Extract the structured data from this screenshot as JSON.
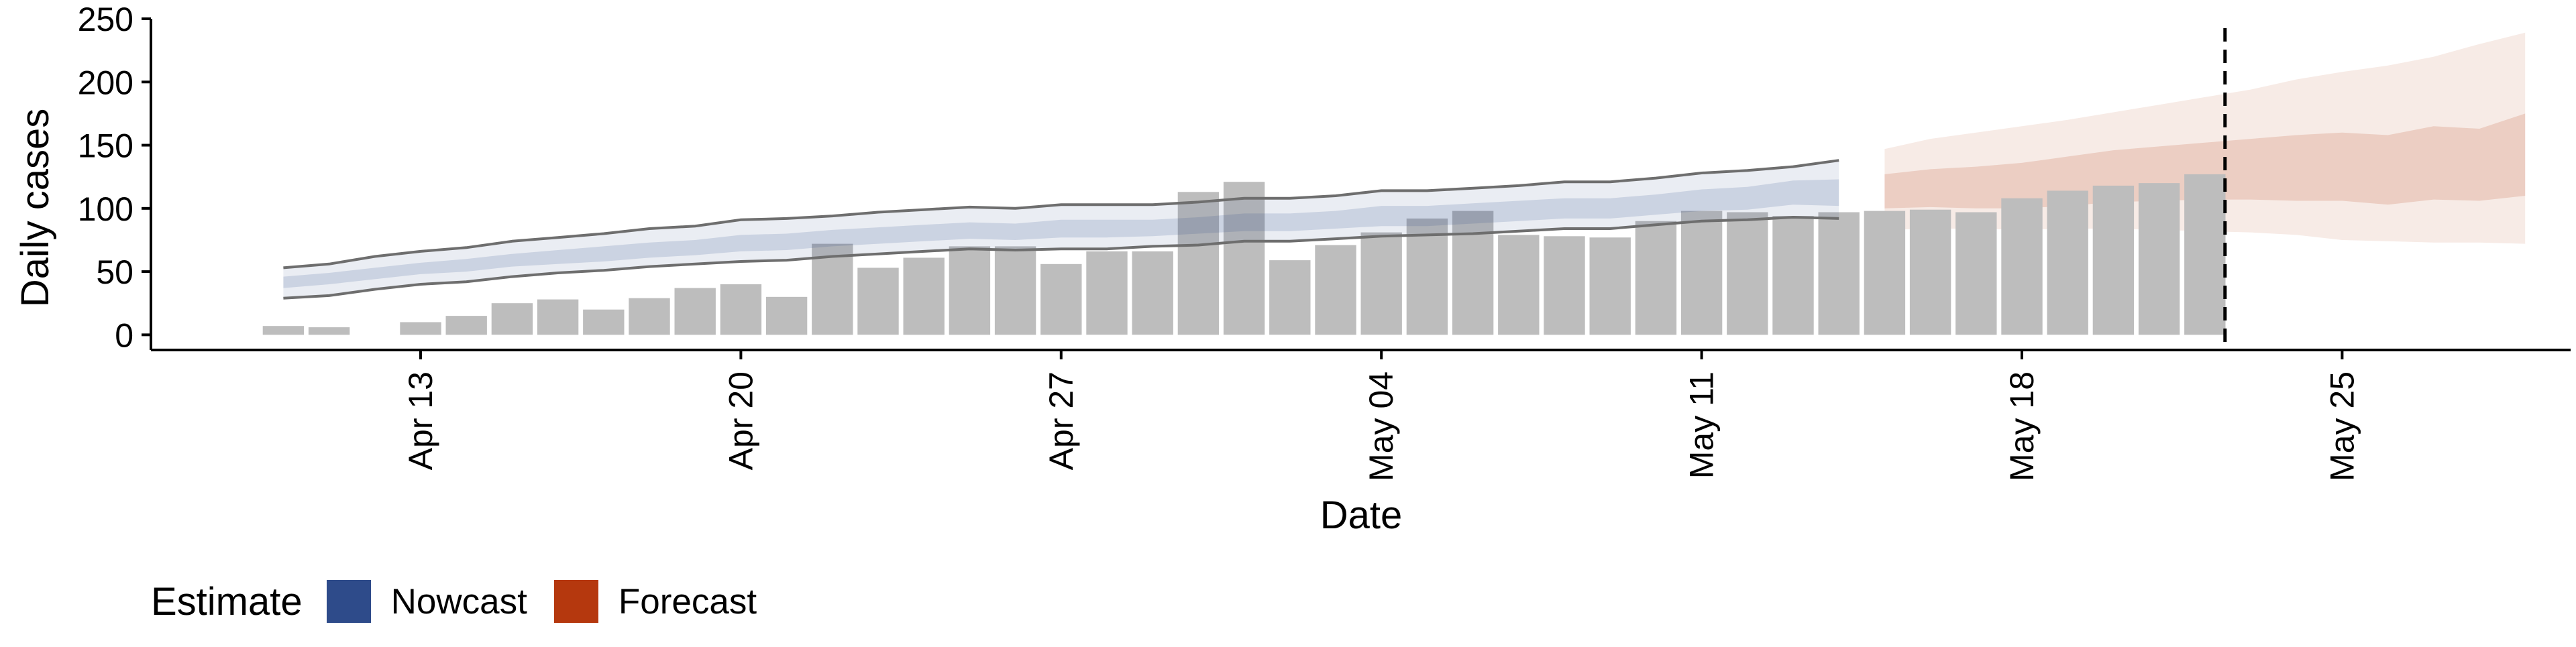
{
  "chart_data": {
    "type": "bar",
    "title": "",
    "xlabel": "Date",
    "ylabel": "Daily cases",
    "ylim": [
      -12,
      250
    ],
    "xlim": [
      "2020-04-07",
      "2020-05-31"
    ],
    "y_ticks": [
      0,
      50,
      100,
      150,
      200,
      250
    ],
    "x_ticks": [
      {
        "date": "2020-04-13",
        "label": "Apr 13"
      },
      {
        "date": "2020-04-20",
        "label": "Apr 20"
      },
      {
        "date": "2020-04-27",
        "label": "Apr 27"
      },
      {
        "date": "2020-05-04",
        "label": "May 04"
      },
      {
        "date": "2020-05-11",
        "label": "May 11"
      },
      {
        "date": "2020-05-18",
        "label": "May 18"
      },
      {
        "date": "2020-05-25",
        "label": "May 25"
      }
    ],
    "grid": false,
    "legend": {
      "position": "bottom-left",
      "title": "Estimate",
      "items": [
        {
          "label": "Nowcast",
          "color": "#2e4b8a"
        },
        {
          "label": "Forecast",
          "color": "#b5380e"
        }
      ]
    },
    "colors": {
      "bars": "#bdbdbd",
      "nowcast": "#2e4b8a",
      "forecast": "#b5380e",
      "bound_lines": "#6e6e6e",
      "reference_line": "#000000"
    },
    "observed_cases": {
      "dates": [
        "2020-04-10",
        "2020-04-11",
        "2020-04-12",
        "2020-04-13",
        "2020-04-14",
        "2020-04-15",
        "2020-04-16",
        "2020-04-17",
        "2020-04-18",
        "2020-04-19",
        "2020-04-20",
        "2020-04-21",
        "2020-04-22",
        "2020-04-23",
        "2020-04-24",
        "2020-04-25",
        "2020-04-26",
        "2020-04-27",
        "2020-04-28",
        "2020-04-29",
        "2020-04-30",
        "2020-05-01",
        "2020-05-02",
        "2020-05-03",
        "2020-05-04",
        "2020-05-05",
        "2020-05-06",
        "2020-05-07",
        "2020-05-08",
        "2020-05-09",
        "2020-05-10",
        "2020-05-11",
        "2020-05-12",
        "2020-05-13",
        "2020-05-14",
        "2020-05-15",
        "2020-05-16",
        "2020-05-17",
        "2020-05-18",
        "2020-05-19",
        "2020-05-20",
        "2020-05-21",
        "2020-05-22"
      ],
      "values": [
        7,
        6,
        0,
        10,
        15,
        25,
        28,
        20,
        29,
        37,
        40,
        30,
        72,
        53,
        61,
        70,
        70,
        56,
        66,
        66,
        113,
        121,
        59,
        71,
        81,
        92,
        98,
        79,
        78,
        77,
        90,
        98,
        97,
        94,
        97,
        98,
        99,
        97,
        108,
        114,
        118,
        120,
        127
      ]
    },
    "nowcast": {
      "dates": [
        "2020-04-10",
        "2020-04-11",
        "2020-04-12",
        "2020-04-13",
        "2020-04-14",
        "2020-04-15",
        "2020-04-16",
        "2020-04-17",
        "2020-04-18",
        "2020-04-19",
        "2020-04-20",
        "2020-04-21",
        "2020-04-22",
        "2020-04-23",
        "2020-04-24",
        "2020-04-25",
        "2020-04-26",
        "2020-04-27",
        "2020-04-28",
        "2020-04-29",
        "2020-04-30",
        "2020-05-01",
        "2020-05-02",
        "2020-05-03",
        "2020-05-04",
        "2020-05-05",
        "2020-05-06",
        "2020-05-07",
        "2020-05-08",
        "2020-05-09",
        "2020-05-10",
        "2020-05-11",
        "2020-05-12",
        "2020-05-13",
        "2020-05-14"
      ],
      "upper90": [
        53,
        56,
        62,
        66,
        69,
        74,
        77,
        80,
        84,
        86,
        91,
        92,
        94,
        97,
        99,
        101,
        100,
        103,
        103,
        103,
        105,
        108,
        108,
        110,
        114,
        114,
        116,
        118,
        121,
        121,
        124,
        128,
        130,
        133,
        138
      ],
      "upper50": [
        46,
        49,
        53,
        57,
        60,
        64,
        67,
        70,
        73,
        75,
        79,
        80,
        83,
        85,
        87,
        89,
        88,
        91,
        91,
        91,
        93,
        96,
        96,
        98,
        102,
        102,
        104,
        106,
        108,
        108,
        111,
        115,
        117,
        122,
        123
      ],
      "median": [
        42,
        45,
        49,
        53,
        55,
        59,
        62,
        64,
        67,
        69,
        73,
        74,
        77,
        79,
        81,
        83,
        82,
        84,
        84,
        85,
        87,
        89,
        89,
        91,
        94,
        94,
        96,
        98,
        100,
        100,
        103,
        106,
        108,
        113,
        113
      ],
      "lower50": [
        37,
        40,
        44,
        48,
        50,
        54,
        56,
        58,
        61,
        63,
        66,
        67,
        70,
        72,
        74,
        76,
        75,
        77,
        77,
        78,
        80,
        82,
        82,
        84,
        86,
        86,
        88,
        90,
        92,
        92,
        95,
        98,
        99,
        103,
        102
      ],
      "lower90": [
        29,
        31,
        36,
        40,
        42,
        46,
        49,
        51,
        54,
        56,
        58,
        59,
        62,
        64,
        66,
        68,
        67,
        68,
        68,
        70,
        71,
        74,
        74,
        76,
        78,
        79,
        80,
        82,
        84,
        84,
        87,
        90,
        91,
        93,
        92
      ]
    },
    "forecast": {
      "dates": [
        "2020-05-15",
        "2020-05-16",
        "2020-05-17",
        "2020-05-18",
        "2020-05-19",
        "2020-05-20",
        "2020-05-21",
        "2020-05-22",
        "2020-05-23",
        "2020-05-24",
        "2020-05-25",
        "2020-05-26",
        "2020-05-27",
        "2020-05-28",
        "2020-05-29"
      ],
      "upper90": [
        147,
        155,
        160,
        165,
        170,
        176,
        182,
        188,
        194,
        202,
        208,
        213,
        220,
        230,
        239
      ],
      "upper50": [
        127,
        131,
        133,
        136,
        141,
        146,
        149,
        152,
        155,
        158,
        160,
        158,
        165,
        163,
        175
      ],
      "lower50": [
        100,
        101,
        100,
        100,
        102,
        105,
        106,
        107,
        107,
        106,
        106,
        103,
        107,
        106,
        110
      ],
      "lower90": [
        83,
        84,
        84,
        83,
        84,
        84,
        83,
        82,
        81,
        79,
        75,
        74,
        73,
        73,
        72
      ]
    },
    "reference_line": {
      "date": "2020-05-22",
      "style": "dashed"
    }
  }
}
